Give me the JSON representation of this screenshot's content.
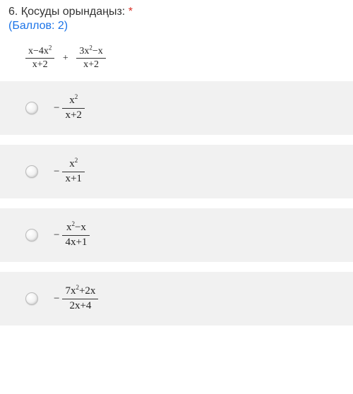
{
  "question": {
    "number": "6.",
    "title": "Қосуды орындаңыз:",
    "required_mark": "*",
    "points": "(Баллов: 2)",
    "title_color": "#333333",
    "points_color": "#1a73e8",
    "required_color": "#d93025"
  },
  "expression": {
    "term1": {
      "num": "x−4x²",
      "den": "x+2"
    },
    "op": "+",
    "term2": {
      "num": "3x²−x",
      "den": "x+2"
    }
  },
  "options": [
    {
      "neg": "−",
      "num": "x²",
      "den": "x+2"
    },
    {
      "neg": "−",
      "num": "x²",
      "den": "x+1"
    },
    {
      "neg": "−",
      "num": "x²−x",
      "den": "4x+1"
    },
    {
      "neg": "−",
      "num": "7x²+2x",
      "den": "2x+4"
    }
  ],
  "styles": {
    "option_bg": "#f1f1f1",
    "page_bg": "#ffffff",
    "expr_fontsize": 14,
    "opt_fontsize": 15
  }
}
